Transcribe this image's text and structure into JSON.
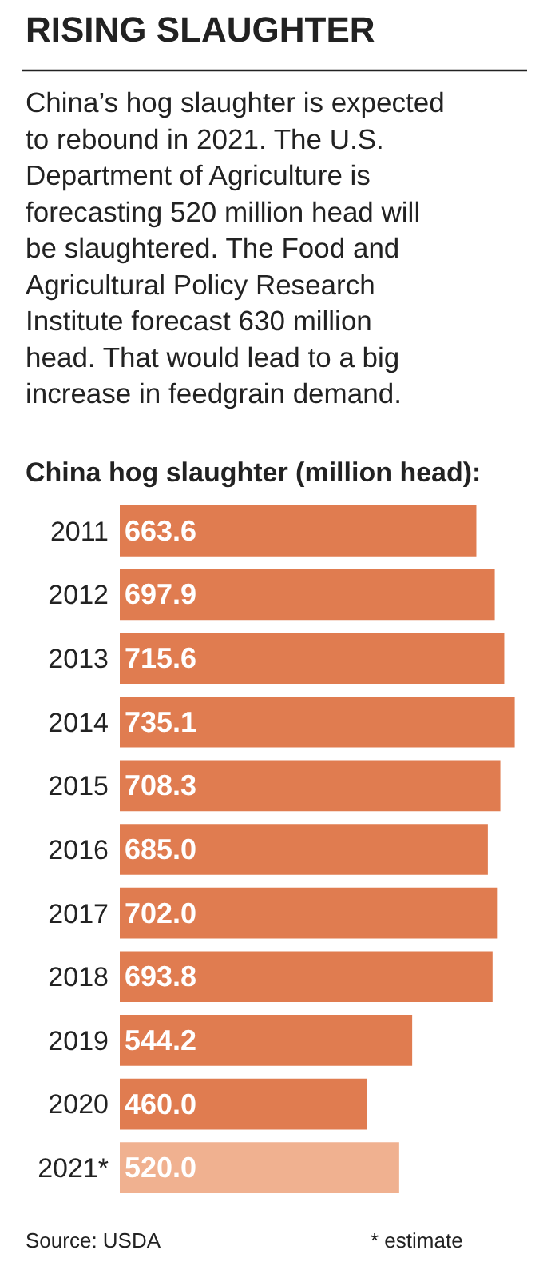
{
  "chart_data": {
    "type": "bar",
    "orientation": "horizontal",
    "title": "RISING SLAUGHTER",
    "subtitle": "China’s hog slaughter is expected to rebound in 2021. The U.S. Department of Agriculture is forecasting 520 million head will be slaughtered. The Food and Agricultural Policy Research Institute forecast 630 million head. That would lead to a big increase in feedgrain demand.",
    "xlabel": "China hog slaughter (million head):",
    "categories": [
      "2011",
      "2012",
      "2013",
      "2014",
      "2015",
      "2016",
      "2017",
      "2018",
      "2019",
      "2020",
      "2021*"
    ],
    "values": [
      663.6,
      697.9,
      715.6,
      735.1,
      708.3,
      685.0,
      702.0,
      693.8,
      544.2,
      460.0,
      520.0
    ],
    "colors": [
      "#e07c50",
      "#e07c50",
      "#e07c50",
      "#e07c50",
      "#e07c50",
      "#e07c50",
      "#e07c50",
      "#e07c50",
      "#e07c50",
      "#e07c50",
      "#f0b190"
    ],
    "value_labels": [
      "663.6",
      "697.9",
      "715.6",
      "735.1",
      "708.3",
      "685.0",
      "702.0",
      "693.8",
      "544.2",
      "460.0",
      "520.0"
    ],
    "legend": false,
    "annotations": [
      "Source: USDA",
      "* estimate"
    ]
  }
}
